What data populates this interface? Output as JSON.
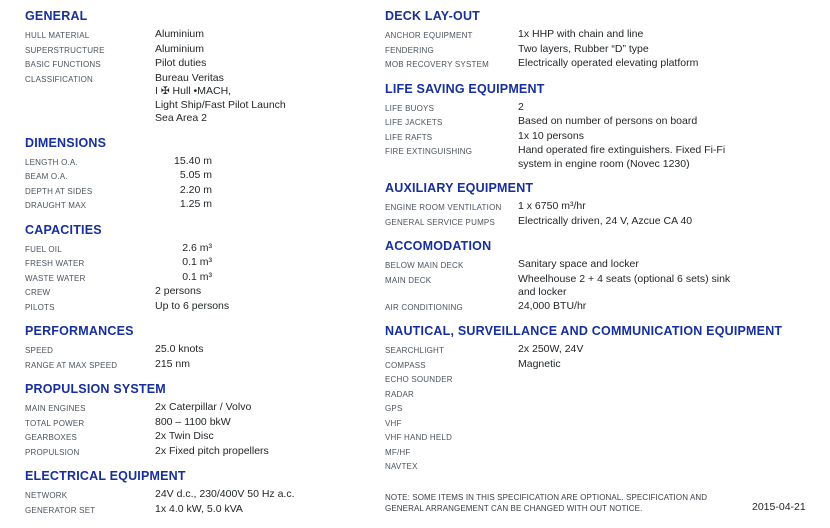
{
  "colors": {
    "heading": "#162f9b",
    "label": "#4b545c",
    "value": "#1f2326"
  },
  "columns": {
    "left": {
      "sections": [
        {
          "title": "GENERAL",
          "rows": [
            {
              "label": "HULL MATERIAL",
              "lines": [
                "Aluminium"
              ]
            },
            {
              "label": "SUPERSTRUCTURE",
              "lines": [
                "Aluminium"
              ]
            },
            {
              "label": "BASIC FUNCTIONS",
              "lines": [
                "Pilot duties"
              ]
            },
            {
              "label": "CLASSIFICATION",
              "lines": [
                "Bureau Veritas",
                "I ✠ Hull •MACH,",
                "Light Ship/Fast Pilot Launch",
                "Sea Area 2"
              ]
            }
          ]
        },
        {
          "title": "DIMENSIONS",
          "rows": [
            {
              "label": "LENGTH O.A.",
              "lines": [
                "15.40 m"
              ]
            },
            {
              "label": "BEAM O.A.",
              "lines": [
                "5.05 m"
              ]
            },
            {
              "label": "DEPTH AT SIDES",
              "lines": [
                "2.20 m"
              ]
            },
            {
              "label": "DRAUGHT MAX",
              "lines": [
                "1.25 m"
              ]
            }
          ]
        },
        {
          "title": "CAPACITIES",
          "rows": [
            {
              "label": "FUEL OIL",
              "lines": [
                "2.6 m³"
              ]
            },
            {
              "label": "FRESH WATER",
              "lines": [
                "0.1 m³"
              ]
            },
            {
              "label": "WASTE WATER",
              "lines": [
                "0.1 m³"
              ]
            },
            {
              "label": "CREW",
              "lines": [
                "2 persons"
              ]
            },
            {
              "label": "PILOTS",
              "lines": [
                "Up to 6 persons"
              ]
            }
          ]
        },
        {
          "title": "PERFORMANCES",
          "rows": [
            {
              "label": "SPEED",
              "lines": [
                "25.0 knots"
              ]
            },
            {
              "label": "RANGE AT MAX SPEED",
              "lines": [
                "215 nm"
              ]
            }
          ]
        },
        {
          "title": "PROPULSION SYSTEM",
          "rows": [
            {
              "label": "MAIN ENGINES",
              "lines": [
                "2x Caterpillar / Volvo"
              ]
            },
            {
              "label": "TOTAL POWER",
              "lines": [
                "800 – 1100 bkW"
              ]
            },
            {
              "label": "GEARBOXES",
              "lines": [
                "2x Twin Disc"
              ]
            },
            {
              "label": "PROPULSION",
              "lines": [
                "2x Fixed pitch propellers"
              ]
            }
          ]
        },
        {
          "title": "ELECTRICAL EQUIPMENT",
          "rows": [
            {
              "label": "NETWORK",
              "lines": [
                "24V d.c., 230/400V 50 Hz a.c."
              ]
            },
            {
              "label": "GENERATOR SET",
              "lines": [
                "1x 4.0 kW, 5.0 kVA"
              ]
            }
          ]
        }
      ]
    },
    "right": {
      "sections": [
        {
          "title": "DECK LAY-OUT",
          "rows": [
            {
              "label": "ANCHOR EQUIPMENT",
              "lines": [
                "1x HHP with chain and line"
              ]
            },
            {
              "label": "FENDERING",
              "lines": [
                "Two layers, Rubber “D” type"
              ]
            },
            {
              "label": "MOB RECOVERY SYSTEM",
              "lines": [
                "Electrically operated elevating platform"
              ]
            }
          ]
        },
        {
          "title": "LIFE SAVING EQUIPMENT",
          "rows": [
            {
              "label": "LIFE BUOYS",
              "lines": [
                "2"
              ]
            },
            {
              "label": "LIFE JACKETS",
              "lines": [
                "Based on number of persons on board"
              ]
            },
            {
              "label": "LIFE RAFTS",
              "lines": [
                "1x 10 persons"
              ]
            },
            {
              "label": "FIRE EXTINGUISHING",
              "lines": [
                "Hand operated fire extinguishers. Fixed Fi-Fi",
                "system in engine room (Novec 1230)"
              ]
            }
          ]
        },
        {
          "title": "AUXILIARY EQUIPMENT",
          "rows": [
            {
              "label": "ENGINE ROOM VENTILATION",
              "lines": [
                "1 x 6750 m³/hr"
              ]
            },
            {
              "label": "GENERAL SERVICE PUMPS",
              "lines": [
                "Electrically driven, 24 V, Azcue CA 40"
              ]
            }
          ]
        },
        {
          "title": "ACCOMODATION",
          "rows": [
            {
              "label": "BELOW MAIN DECK",
              "lines": [
                "Sanitary space and locker"
              ]
            },
            {
              "label": "MAIN DECK",
              "lines": [
                "Wheelhouse 2 + 4 seats (optional 6 sets) sink",
                "and locker"
              ]
            },
            {
              "label": "AIR CONDITIONING",
              "lines": [
                "24,000 BTU/hr"
              ]
            }
          ]
        },
        {
          "title": "NAUTICAL, SURVEILLANCE AND COMMUNICATION EQUIPMENT",
          "rows": [
            {
              "label": "SEARCHLIGHT",
              "lines": [
                "2x 250W, 24V"
              ]
            },
            {
              "label": "COMPASS",
              "lines": [
                "Magnetic"
              ]
            },
            {
              "label": "ECHO SOUNDER",
              "lines": []
            },
            {
              "label": "RADAR",
              "lines": []
            },
            {
              "label": "GPS",
              "lines": []
            },
            {
              "label": "VHF",
              "lines": []
            },
            {
              "label": "VHF HAND HELD",
              "lines": []
            },
            {
              "label": "MF/HF",
              "lines": []
            },
            {
              "label": "NAVTEX",
              "lines": []
            }
          ]
        }
      ]
    }
  },
  "footer": {
    "note": "NOTE: SOME ITEMS IN THIS SPECIFICATION ARE OPTIONAL. SPECIFICATION AND GENERAL ARRANGEMENT CAN BE CHANGED WITH OUT NOTICE.",
    "date": "2015-04-21"
  }
}
